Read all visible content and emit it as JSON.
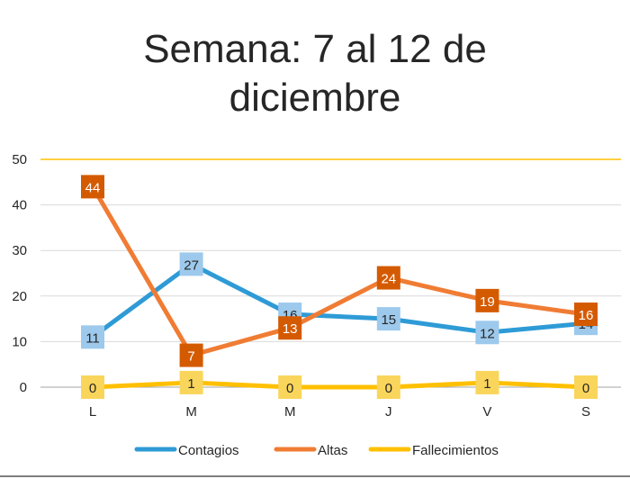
{
  "title": {
    "line1": "Semana: 7 al 12 de",
    "line2": "diciembre"
  },
  "colors": {
    "Contagios": "#2e9bd6",
    "Altas": "#f07c34",
    "Fallecimientos": "#ffc000",
    "label_bg": {
      "Contagios": "#9dc9ec",
      "Altas": "#d45a00",
      "Fallecimientos": "#f9d55b"
    },
    "grid": "#d9d9d9",
    "top_grid": "#ffc000",
    "axis": "#a6a6a6"
  },
  "chart_data": {
    "type": "line",
    "categories": [
      "L",
      "M",
      "M",
      "J",
      "V",
      "S"
    ],
    "ylim": [
      0,
      50
    ],
    "yticks": [
      0,
      10,
      20,
      30,
      40,
      50
    ],
    "grid": true,
    "legend_position": "bottom",
    "series": [
      {
        "name": "Contagios",
        "values": [
          11,
          27,
          16,
          15,
          12,
          14
        ]
      },
      {
        "name": "Altas",
        "values": [
          44,
          7,
          13,
          24,
          19,
          16
        ]
      },
      {
        "name": "Fallecimientos",
        "values": [
          0,
          1,
          0,
          0,
          1,
          0
        ]
      }
    ]
  }
}
